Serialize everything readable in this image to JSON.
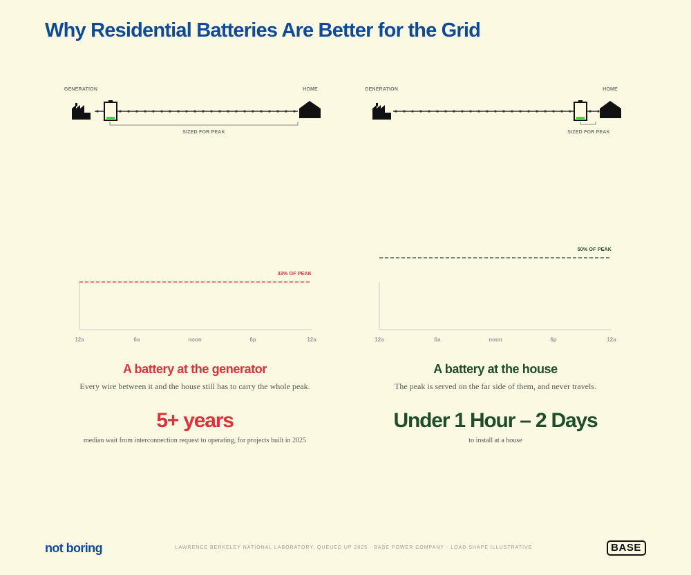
{
  "title": "Why Residential Batteries Are Better for the Grid",
  "panels": [
    {
      "from": "GENERATION",
      "to": "HOME",
      "bracket": "SIZED FOR PEAK",
      "peak_label": "33% OF PEAK",
      "x_labels": [
        "12a",
        "6a",
        "noon",
        "6p",
        "12a"
      ],
      "heading": "A battery at the generator",
      "description": "Every wire between it and the house still has to carry the whole peak.",
      "stat": "5+ years",
      "stat_note": "median wait from interconnection request to operating, for projects built in 2025"
    },
    {
      "from": "GENERATION",
      "to": "HOME",
      "bracket": "SIZED FOR PEAK",
      "peak_label": "50% OF PEAK",
      "x_labels": [
        "12a",
        "6a",
        "noon",
        "6p",
        "12a"
      ],
      "heading": "A battery at the house",
      "description": "The peak is served on the far side of them, and never travels.",
      "stat": "Under 1 Hour – 2 Days",
      "stat_note": "to install at a house"
    }
  ],
  "footer": {
    "brand": "not boring",
    "source": "LAWRENCE BERKELEY NATIONAL LABORATORY, QUEUED UP 2025 · BASE POWER COMPANY · LOAD SHAPE ILLUSTRATIVE",
    "logo": "BASE"
  }
}
